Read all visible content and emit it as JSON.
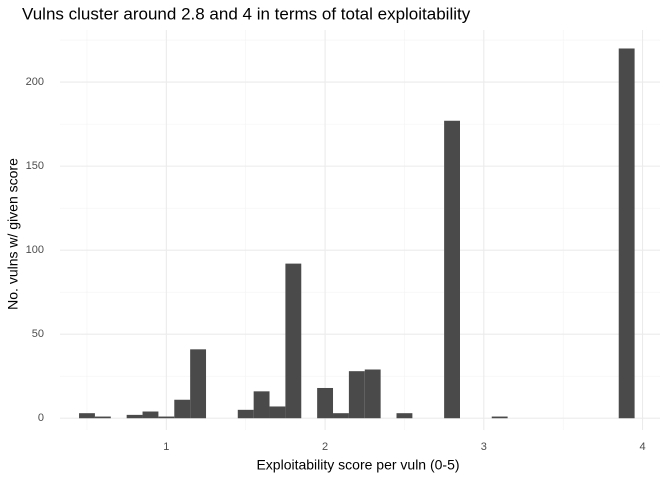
{
  "chart_data": {
    "type": "histogram",
    "title": "Vulns cluster around 2.8 and 4 in terms of total exploitability",
    "x_label": "Exploitability score per vuln (0-5)",
    "y_label": "No. vulns w/ given score",
    "bins": [
      0.45,
      0.55,
      0.65,
      0.75,
      0.85,
      0.95,
      1.05,
      1.15,
      1.25,
      1.35,
      1.45,
      1.55,
      1.65,
      1.75,
      1.85,
      1.95,
      2.05,
      2.15,
      2.25,
      2.35,
      2.45,
      2.55,
      2.65,
      2.75,
      2.85,
      2.95,
      3.05,
      3.15,
      3.25,
      3.35,
      3.45,
      3.55,
      3.65,
      3.75,
      3.85,
      3.95
    ],
    "counts": [
      3,
      1,
      0,
      2,
      4,
      1,
      11,
      41,
      0,
      0,
      5,
      16,
      7,
      92,
      0,
      18,
      3,
      28,
      29,
      0,
      3,
      0,
      0,
      177,
      0,
      0,
      1,
      0,
      0,
      0,
      0,
      0,
      0,
      0,
      220
    ],
    "color": "#4a4a4a",
    "xlim": [
      0.33,
      4.11
    ],
    "ylim": [
      -7,
      231
    ],
    "xticks": [
      1,
      2,
      3,
      4
    ],
    "yticks": [
      0,
      50,
      100,
      150,
      200
    ],
    "x_minor_ticks": [
      0.5,
      1.5,
      2.5,
      3.5
    ],
    "y_minor_ticks": [
      25,
      75,
      125,
      175,
      225
    ],
    "grid": true
  }
}
